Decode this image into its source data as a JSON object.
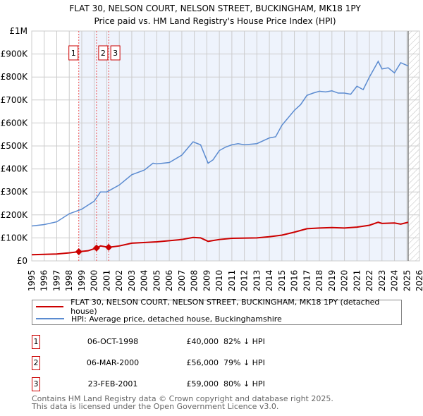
{
  "chart_data": {
    "type": "line",
    "title": "FLAT 30, NELSON COURT, NELSON STREET, BUCKINGHAM, MK18 1PY",
    "subtitle": "Price paid vs. HM Land Registry's House Price Index (HPI)",
    "xlim": [
      1995,
      2026
    ],
    "ylim": [
      0,
      1000000
    ],
    "x_ticks": [
      "1995",
      "1996",
      "1997",
      "1998",
      "1999",
      "2000",
      "2001",
      "2002",
      "2003",
      "2004",
      "2005",
      "2006",
      "2007",
      "2008",
      "2009",
      "2010",
      "2011",
      "2012",
      "2013",
      "2014",
      "2015",
      "2016",
      "2017",
      "2018",
      "2019",
      "2020",
      "2021",
      "2022",
      "2023",
      "2024",
      "2025",
      "2026"
    ],
    "y_ticks": [
      {
        "v": 0,
        "label": "£0"
      },
      {
        "v": 100000,
        "label": "£100K"
      },
      {
        "v": 200000,
        "label": "£200K"
      },
      {
        "v": 300000,
        "label": "£300K"
      },
      {
        "v": 400000,
        "label": "£400K"
      },
      {
        "v": 500000,
        "label": "£500K"
      },
      {
        "v": 600000,
        "label": "£600K"
      },
      {
        "v": 700000,
        "label": "£700K"
      },
      {
        "v": 800000,
        "label": "£800K"
      },
      {
        "v": 900000,
        "label": "£900K"
      },
      {
        "v": 1000000,
        "label": "£1M"
      }
    ],
    "data_end": 2025.1,
    "series": [
      {
        "name": "FLAT 30, NELSON COURT, NELSON STREET, BUCKINGHAM, MK18 1PY (detached house)",
        "color": "#cc0000",
        "x": [
          1995,
          1997,
          1998,
          1998.76,
          1999.5,
          2000.18,
          2000.5,
          2001.15,
          2002,
          2003,
          2005,
          2007,
          2007.9,
          2008.5,
          2009.1,
          2010,
          2011,
          2013,
          2014,
          2015,
          2016,
          2017,
          2018,
          2019,
          2020,
          2021,
          2022,
          2022.7,
          2023,
          2024,
          2024.5,
          2025.1
        ],
        "y": [
          27000,
          30000,
          35000,
          40000,
          44000,
          56000,
          65000,
          59000,
          65000,
          77000,
          83000,
          93000,
          102000,
          100000,
          85000,
          93000,
          98000,
          100000,
          105000,
          112000,
          125000,
          140000,
          143000,
          145000,
          143000,
          147000,
          155000,
          168000,
          163000,
          165000,
          160000,
          168000
        ]
      },
      {
        "name": "HPI: Average price, detached house, Buckinghamshire",
        "color": "#5b8bd0",
        "x": [
          1995,
          1996,
          1997,
          1998,
          1999,
          2000,
          2000.5,
          2001,
          2002,
          2003,
          2004,
          2004.7,
          2005,
          2006,
          2007,
          2007.9,
          2008.5,
          2009.1,
          2009.5,
          2010,
          2010.5,
          2011,
          2011.5,
          2012,
          2013,
          2014,
          2014.5,
          2015,
          2016,
          2016.5,
          2017,
          2017.5,
          2018,
          2018.5,
          2019,
          2019.5,
          2020,
          2020.5,
          2021,
          2021.5,
          2022,
          2022.7,
          2023,
          2023.5,
          2024,
          2024.5,
          2025.1
        ],
        "y": [
          152000,
          158000,
          170000,
          205000,
          225000,
          260000,
          300000,
          300000,
          330000,
          375000,
          395000,
          425000,
          422000,
          428000,
          460000,
          518000,
          505000,
          425000,
          440000,
          480000,
          495000,
          505000,
          510000,
          505000,
          510000,
          535000,
          540000,
          590000,
          655000,
          680000,
          720000,
          730000,
          738000,
          735000,
          740000,
          730000,
          730000,
          725000,
          760000,
          745000,
          800000,
          868000,
          835000,
          840000,
          818000,
          862000,
          848000
        ]
      }
    ],
    "sales": [
      {
        "id": "1",
        "x": 1998.76,
        "y": 40000,
        "date": "06-OCT-1998",
        "price": "£40,000",
        "hpi": "82% ↓ HPI"
      },
      {
        "id": "2",
        "x": 2000.18,
        "y": 56000,
        "date": "06-MAR-2000",
        "price": "£56,000",
        "hpi": "79% ↓ HPI"
      },
      {
        "id": "3",
        "x": 2001.15,
        "y": 59000,
        "date": "23-FEB-2001",
        "price": "£59,000",
        "hpi": "80% ↓ HPI"
      }
    ]
  },
  "footer": {
    "line1": "Contains HM Land Registry data © Crown copyright and database right 2025.",
    "line2": "This data is licensed under the Open Government Licence v3.0."
  }
}
